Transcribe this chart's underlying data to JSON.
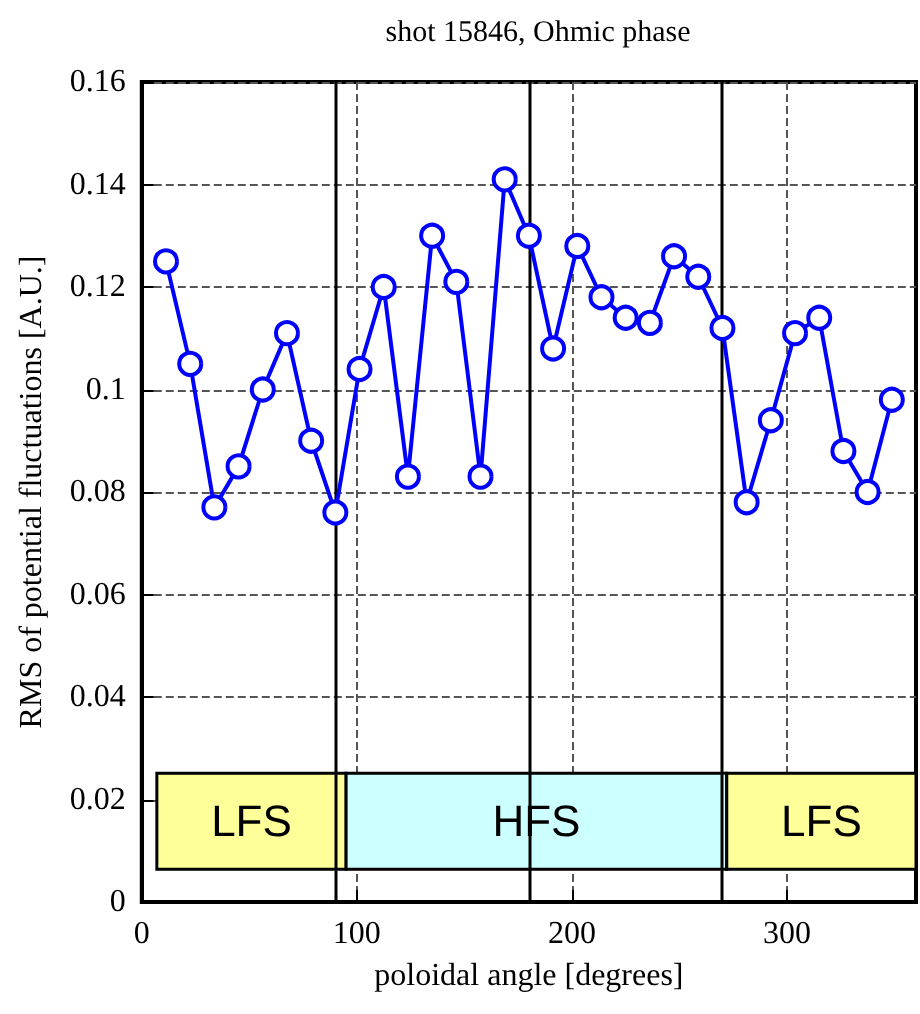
{
  "chart_data": {
    "type": "line",
    "title": "shot 15846, Ohmic phase",
    "xlabel": "poloidal angle [degrees]",
    "ylabel": "RMS of potential fluctuations [A.U.]",
    "x": [
      11.25,
      22.5,
      33.75,
      45,
      56.25,
      67.5,
      78.75,
      90,
      101.25,
      112.5,
      123.75,
      135,
      146.25,
      157.5,
      168.75,
      180,
      191.25,
      202.5,
      213.75,
      225,
      236.25,
      247.5,
      258.75,
      270,
      281.25,
      292.5,
      303.75,
      315,
      326.25,
      337.5,
      348.75
    ],
    "series": [
      {
        "color": "#0000ff",
        "values": [
          0.125,
          0.105,
          0.077,
          0.085,
          0.1,
          0.111,
          0.09,
          0.076,
          0.104,
          0.12,
          0.083,
          0.13,
          0.121,
          0.083,
          0.141,
          0.13,
          0.108,
          0.128,
          0.118,
          0.114,
          0.113,
          0.126,
          0.122,
          0.112,
          0.078,
          0.094,
          0.111,
          0.114,
          0.088,
          0.08,
          0.098
        ]
      }
    ],
    "xlim": [
      0,
      360
    ],
    "xticks": [
      0,
      100,
      200,
      300
    ],
    "ylim": [
      0,
      0.16
    ],
    "yticks": [
      0,
      0.02,
      0.04,
      0.06,
      0.08,
      0.1,
      0.12,
      0.14,
      0.16
    ],
    "grid": true,
    "marker": "circle",
    "line_style": "solid",
    "ref_lines": [
      {
        "axis": "x",
        "value": 90,
        "color": "#000000"
      },
      {
        "axis": "x",
        "value": 180,
        "color": "#000000"
      },
      {
        "axis": "x",
        "value": 270,
        "color": "#000000"
      }
    ],
    "bands": [
      {
        "axis": "x",
        "from": 7,
        "to": 95,
        "label": "LFS",
        "color": "#ffff99"
      },
      {
        "axis": "x",
        "from": 95,
        "to": 272,
        "label": "HFS",
        "color": "#ccffff"
      },
      {
        "axis": "x",
        "from": 272,
        "to": 360,
        "label": "LFS",
        "color": "#ffff99"
      }
    ]
  }
}
